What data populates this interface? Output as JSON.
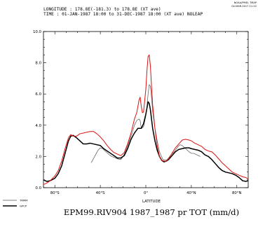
{
  "header": {
    "line1": "LONGITUDE : 178.8E(-181.3) to 178.8E (XT ave)",
    "line2": "TIME : 01-JAN-1987 18:00 to 31-DEC-1987 18:00 (XT ave) NOLEAP",
    "stamp1": "NOAA/PMEL TMAP",
    "stamp2": "04-MAR-2017 11:22"
  },
  "chart_data": {
    "type": "line",
    "title": "EPM99.RIV904 1987_1987 pr TOT (mm/d)",
    "xlabel": "LATITUDE",
    "ylabel": "",
    "xlim": [
      -90,
      90
    ],
    "ylim": [
      0,
      10
    ],
    "y_ticks": [
      "0.0",
      "2.0",
      "4.0",
      "6.0",
      "8.0",
      "10.0"
    ],
    "x_ticks": [
      {
        "value": -80,
        "label": "80°S"
      },
      {
        "value": -40,
        "label": "40°S"
      },
      {
        "value": 0,
        "label": "0°"
      },
      {
        "value": 40,
        "label": "40°N"
      },
      {
        "value": 80,
        "label": "80°N"
      }
    ],
    "legend": [
      "TRMM",
      "GPCP"
    ],
    "series": [
      {
        "name": "TRMM",
        "color": "#555555",
        "width": 0.7,
        "x": [
          -48,
          -45,
          -42,
          -40,
          -38,
          -35,
          -32,
          -30,
          -28,
          -25,
          -22,
          -20,
          -18,
          -15,
          -12,
          -10,
          -8,
          -6,
          -5,
          -4,
          -2,
          0,
          1,
          2,
          3,
          4,
          5,
          6,
          8,
          10,
          12,
          15,
          18,
          20,
          22,
          25,
          28,
          30,
          32,
          35,
          38,
          40,
          42,
          45,
          48
        ],
        "y": [
          1.6,
          2.0,
          2.4,
          2.55,
          2.5,
          2.3,
          2.1,
          2.0,
          1.95,
          1.85,
          1.8,
          2.0,
          2.3,
          2.9,
          3.5,
          4.0,
          4.3,
          4.4,
          4.3,
          3.8,
          3.9,
          4.6,
          5.2,
          6.0,
          6.6,
          6.5,
          5.8,
          4.9,
          3.8,
          3.0,
          2.3,
          1.8,
          1.75,
          1.9,
          2.1,
          2.3,
          2.6,
          2.75,
          2.7,
          2.5,
          2.3,
          2.2,
          2.2,
          2.1,
          2.0
        ]
      },
      {
        "name": "GPCP",
        "color": "#000000",
        "width": 1.5,
        "x": [
          -90,
          -87,
          -84,
          -80,
          -77,
          -74,
          -71,
          -68,
          -66,
          -64,
          -61,
          -58,
          -55,
          -52,
          -49,
          -46,
          -43,
          -40,
          -37,
          -34,
          -31,
          -28,
          -25,
          -22,
          -19,
          -16,
          -13,
          -10,
          -7,
          -4,
          -2,
          0,
          1,
          2,
          3,
          4,
          5,
          6,
          8,
          10,
          12,
          14,
          16,
          18,
          20,
          23,
          26,
          29,
          32,
          35,
          38,
          40,
          43,
          46,
          49,
          52,
          55,
          58,
          61,
          64,
          67,
          70,
          73,
          76,
          79,
          82,
          85,
          88,
          90
        ],
        "y": [
          0.5,
          0.4,
          0.45,
          0.6,
          0.9,
          1.4,
          2.2,
          3.0,
          3.3,
          3.35,
          3.2,
          3.0,
          2.8,
          2.8,
          2.85,
          2.8,
          2.75,
          2.7,
          2.5,
          2.35,
          2.2,
          2.05,
          1.9,
          1.9,
          2.05,
          2.5,
          3.1,
          3.5,
          3.8,
          3.8,
          4.1,
          4.7,
          5.1,
          5.5,
          5.4,
          5.0,
          4.4,
          3.8,
          3.0,
          2.4,
          2.0,
          1.75,
          1.65,
          1.7,
          1.8,
          2.05,
          2.3,
          2.45,
          2.5,
          2.55,
          2.55,
          2.5,
          2.45,
          2.4,
          2.3,
          2.1,
          2.0,
          1.8,
          1.55,
          1.3,
          1.1,
          1.0,
          0.95,
          0.9,
          0.8,
          0.65,
          0.45,
          0.4,
          0.45
        ]
      },
      {
        "name": "EPM99.RIV904",
        "color": "#dd1111",
        "width": 1.0,
        "x": [
          -90,
          -87,
          -84,
          -80,
          -77,
          -74,
          -71,
          -68,
          -66,
          -64,
          -61,
          -58,
          -55,
          -52,
          -49,
          -46,
          -43,
          -40,
          -37,
          -34,
          -31,
          -28,
          -25,
          -22,
          -19,
          -16,
          -13,
          -10,
          -8,
          -6,
          -5,
          -4,
          -3,
          -2,
          0,
          1,
          2,
          3,
          4,
          5,
          6,
          8,
          10,
          12,
          14,
          16,
          18,
          20,
          23,
          26,
          29,
          32,
          35,
          38,
          40,
          43,
          46,
          49,
          52,
          55,
          58,
          61,
          64,
          67,
          70,
          73,
          76,
          79,
          82,
          85,
          88,
          90
        ],
        "y": [
          0.2,
          0.3,
          0.45,
          0.75,
          1.1,
          1.7,
          2.5,
          3.2,
          3.4,
          3.3,
          3.3,
          3.45,
          3.5,
          3.55,
          3.6,
          3.6,
          3.45,
          3.25,
          3.0,
          2.7,
          2.45,
          2.25,
          2.15,
          2.05,
          2.25,
          2.8,
          3.5,
          4.4,
          4.8,
          5.6,
          5.8,
          5.2,
          4.8,
          4.85,
          6.3,
          7.5,
          8.4,
          8.5,
          7.8,
          6.5,
          5.3,
          3.8,
          2.7,
          2.0,
          1.75,
          1.7,
          1.7,
          1.85,
          2.2,
          2.55,
          2.8,
          3.05,
          3.1,
          3.05,
          3.0,
          2.85,
          2.75,
          2.65,
          2.45,
          2.35,
          2.3,
          2.1,
          1.85,
          1.6,
          1.4,
          1.2,
          1.0,
          0.9,
          0.8,
          0.7,
          0.65,
          0.55
        ]
      }
    ]
  }
}
